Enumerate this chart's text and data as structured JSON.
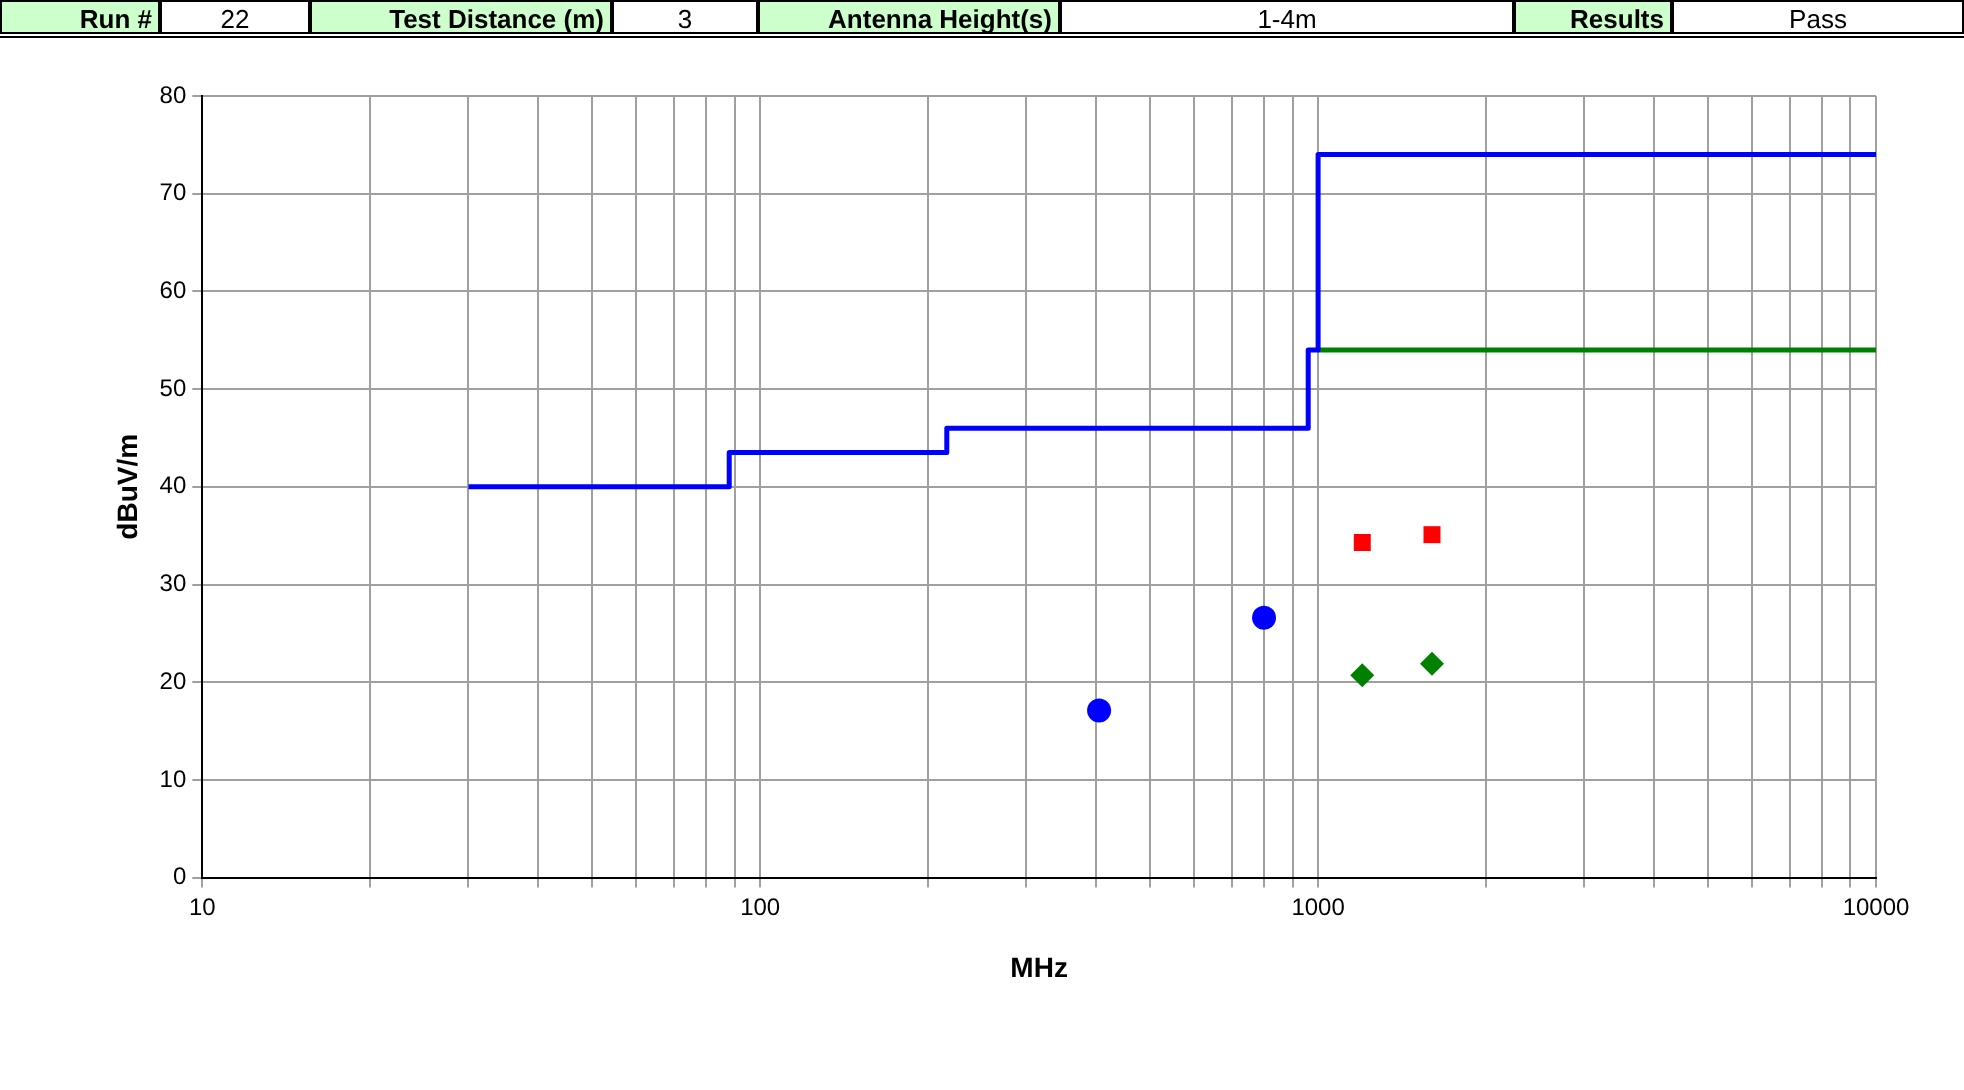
{
  "chart_data": {
    "type": "step",
    "xlabel": "MHz",
    "ylabel": "dBuV/m",
    "annotations": [
      "Run #",
      "22",
      "Test Distance (m)",
      "3",
      "Antenna Height(s)",
      "1-4m",
      "Results",
      "Pass"
    ],
    "log": "x",
    "grid": true,
    "legend": false,
    "line_style": "solid",
    "xlim": [
      10,
      10000
    ],
    "ylim": [
      0,
      80
    ],
    "xticks": [
      10,
      {
        "value": 20,
        "label": null
      },
      {
        "value": 30,
        "label": null
      },
      {
        "value": 40,
        "label": null
      },
      {
        "value": 50,
        "label": null
      },
      {
        "value": 60,
        "label": null
      },
      {
        "value": 70,
        "label": null
      },
      {
        "value": 80,
        "label": null
      },
      {
        "value": 90,
        "label": null
      },
      100,
      {
        "value": 200,
        "label": null
      },
      {
        "value": 300,
        "label": null
      },
      {
        "value": 400,
        "label": null
      },
      {
        "value": 500,
        "label": null
      },
      {
        "value": 600,
        "label": null
      },
      {
        "value": 700,
        "label": null
      },
      {
        "value": 800,
        "label": null
      },
      {
        "value": 900,
        "label": null
      },
      1000,
      {
        "value": 2000,
        "label": null
      },
      {
        "value": 3000,
        "label": null
      },
      {
        "value": 4000,
        "label": null
      },
      {
        "value": 5000,
        "label": null
      },
      {
        "value": 6000,
        "label": null
      },
      {
        "value": 7000,
        "label": null
      },
      {
        "value": 8000,
        "label": null
      },
      {
        "value": 9000,
        "label": null
      },
      10000
    ],
    "yticks": [
      0,
      10,
      20,
      30,
      40,
      50,
      60,
      70,
      80
    ],
    "series": [
      {
        "color": "#0000ff",
        "x": [
          30,
          88,
          216,
          960,
          1000,
          10000
        ],
        "values": [
          40,
          43.5,
          46,
          54,
          74,
          74
        ]
      },
      {
        "color": "#008000",
        "x": [
          1000,
          10000
        ],
        "values": [
          54,
          54
        ]
      },
      {
        "type": "scatter",
        "marker": "circle",
        "color": "#0000ff",
        "x": [
          405,
          800
        ],
        "values": [
          17.1,
          26.6
        ]
      },
      {
        "type": "scatter",
        "marker": "square",
        "color": "#ff0000",
        "x": [
          1200,
          1600
        ],
        "values": [
          34.3,
          35.1
        ]
      },
      {
        "type": "scatter",
        "marker": "diamond",
        "color": "#008000",
        "x": [
          1200,
          1600
        ],
        "values": [
          20.7,
          21.9
        ]
      }
    ]
  }
}
